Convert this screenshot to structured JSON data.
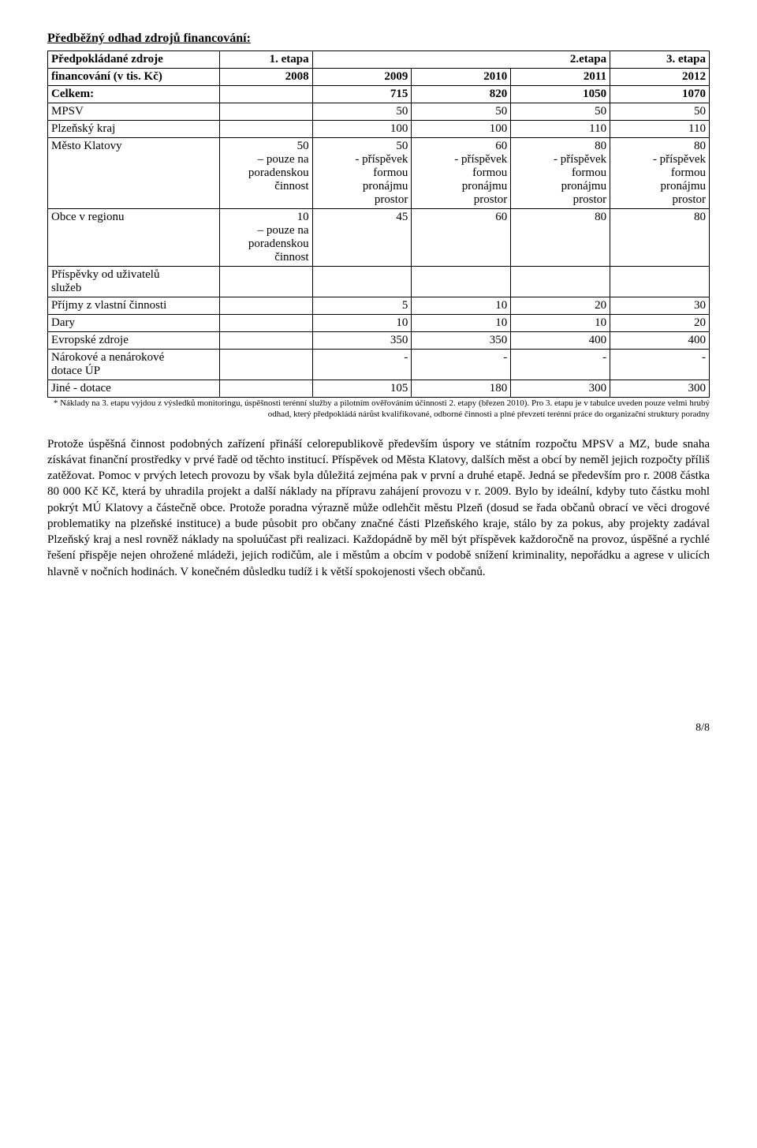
{
  "heading": "Předběžný odhad zdrojů financování:",
  "table": {
    "header_row1": {
      "label": "Předpokládané zdroje",
      "c1": "1. etapa",
      "c2_span": "2.etapa",
      "c5": "3. etapa"
    },
    "header_row2": {
      "label": "financování (v tis. Kč)",
      "c1": "2008",
      "c2": "2009",
      "c3": "2010",
      "c4": "2011",
      "c5": "2012"
    },
    "rows": [
      {
        "label": "Celkem:",
        "c1": "",
        "c2": "715",
        "c3": "820",
        "c4": "1050",
        "c5": "1070",
        "bold": true
      },
      {
        "label": "MPSV",
        "c1": "",
        "c2": "50",
        "c3": "50",
        "c4": "50",
        "c5": "50"
      },
      {
        "label": "Plzeňský kraj",
        "c1": "",
        "c2": "100",
        "c3": "100",
        "c4": "110",
        "c5": "110"
      },
      {
        "label": "Město Klatovy",
        "c1": "50\n– pouze na\nporadenskou\nčinnost",
        "c2": "50\n- příspěvek\nformou\npronájmu\nprostor",
        "c3": "60\n- příspěvek\nformou\npronájmu\nprostor",
        "c4": "80\n- příspěvek\nformou\npronájmu\nprostor",
        "c5": "80\n- příspěvek\nformou\npronájmu\nprostor"
      },
      {
        "label": "Obce v regionu",
        "c1": "10\n– pouze na\nporadenskou\nčinnost",
        "c2": "45",
        "c3": "60",
        "c4": "80",
        "c5": "80"
      },
      {
        "label": "Příspěvky od uživatelů\nslužeb",
        "c1": "",
        "c2": "",
        "c3": "",
        "c4": "",
        "c5": ""
      },
      {
        "label": "Příjmy z vlastní činnosti",
        "c1": "",
        "c2": "5",
        "c3": "10",
        "c4": "20",
        "c5": "30"
      },
      {
        "label": "Dary",
        "c1": "",
        "c2": "10",
        "c3": "10",
        "c4": "10",
        "c5": "20"
      },
      {
        "label": "Evropské zdroje",
        "c1": "",
        "c2": "350",
        "c3": "350",
        "c4": "400",
        "c5": "400"
      },
      {
        "label": "Nárokové a nenárokové\ndotace ÚP",
        "c1": "",
        "c2": "-",
        "c3": "-",
        "c4": "-",
        "c5": "-"
      },
      {
        "label": "Jiné - dotace",
        "c1": "",
        "c2": "105",
        "c3": "180",
        "c4": "300",
        "c5": "300"
      }
    ]
  },
  "footnote": "* Náklady na 3. etapu vyjdou z výsledků monitoringu, úspěšnosti terénní služby a pilotním ověřováním účinnosti 2. etapy (březen 2010). Pro 3. etapu je v tabulce uveden pouze velmi hrubý odhad, který předpokládá nárůst kvalifikované, odborné činnosti a plné převzetí terénní práce do organizační struktury poradny",
  "paragraph": "Protože úspěšná činnost podobných zařízení přináší celorepublikově především úspory ve státním rozpočtu MPSV a MZ, bude snaha získávat finanční prostředky v prvé řadě od těchto institucí. Příspěvek od Města Klatovy, dalších měst a obcí by neměl jejich rozpočty příliš zatěžovat. Pomoc v prvých letech provozu by však byla důležitá zejména pak v první a druhé etapě. Jedná se především pro r. 2008 částka 80 000 Kč Kč, která by uhradila projekt a další náklady na přípravu zahájení provozu v r. 2009. Bylo by ideální, kdyby tuto částku mohl pokrýt MÚ Klatovy a částečně obce. Protože poradna výrazně může odlehčit městu Plzeň (dosud se řada občanů obrací ve věci drogové problematiky na plzeňské instituce) a bude působit pro občany značné části Plzeňského kraje, stálo by za pokus, aby projekty zadával Plzeňský kraj a nesl rovněž náklady na spoluúčast při realizaci. Každopádně by měl být příspěvek každoročně na provoz, úspěšné a rychlé řešení přispěje nejen ohrožené mládeži, jejich rodičům, ale i městům a obcím v podobě snížení kriminality, nepořádku a agrese v ulicích hlavně v nočních hodinách. V konečném důsledku tudíž i k větší spokojenosti všech občanů.",
  "page_number": "8/8",
  "colors": {
    "text": "#000000",
    "background": "#ffffff",
    "border": "#000000"
  }
}
